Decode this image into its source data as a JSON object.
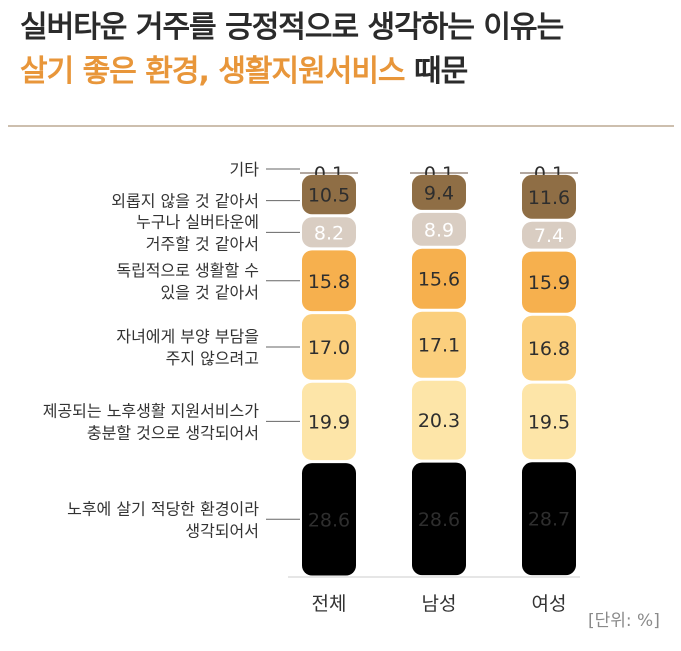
{
  "title": {
    "line1": "실버타운 거주를 긍정적으로 생각하는 이유는",
    "line2_accent": "살기 좋은 환경, 생활지원서비스",
    "line2_rest": "때문"
  },
  "unit_label": "[단위: %]",
  "colors": {
    "segments": [
      "#b3a396",
      "#8f6e45",
      "#d9cdc2",
      "#f6b04e",
      "#fbcf7d",
      "#fde5a8"
    ]
  },
  "chart_data": {
    "type": "bar",
    "stacked": true,
    "categories": [
      "전체",
      "남성",
      "여성"
    ],
    "reasons": [
      {
        "label_lines": [
          "기타"
        ],
        "values": [
          0.1,
          0.1,
          0.1
        ]
      },
      {
        "label_lines": [
          "외롭지 않을 것 같아서"
        ],
        "values": [
          10.5,
          9.4,
          11.6
        ]
      },
      {
        "label_lines": [
          "누구나 실버타운에",
          "거주할 것 같아서"
        ],
        "values": [
          8.2,
          8.9,
          7.4
        ]
      },
      {
        "label_lines": [
          "독립적으로 생활할 수",
          "있을 것 같아서"
        ],
        "values": [
          15.8,
          15.6,
          15.9
        ]
      },
      {
        "label_lines": [
          "자녀에게 부양 부담을",
          "주지 않으려고"
        ],
        "values": [
          17.0,
          17.1,
          16.8
        ]
      },
      {
        "label_lines": [
          "제공되는 노후생활 지원서비스가",
          "충분할 것으로 생각되어서"
        ],
        "values": [
          19.9,
          20.3,
          19.5
        ]
      },
      {
        "label_lines": [
          "노후에 살기 적당한 환경이라",
          "생각되어서"
        ],
        "values": [
          28.6,
          28.6,
          28.7
        ]
      }
    ]
  }
}
